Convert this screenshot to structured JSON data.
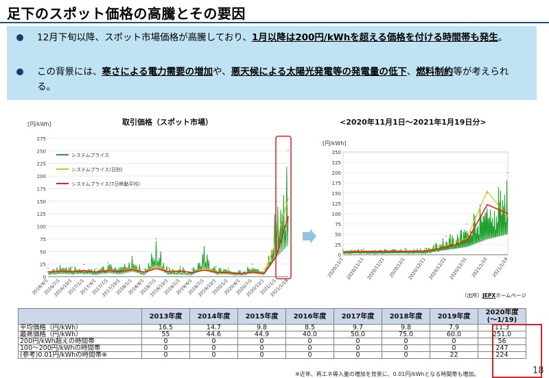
{
  "title": "足下のスポット価格の高騰とその要因",
  "bullets": [
    {
      "pre": "12月下旬以降、スポット市場価格が高騰しており、",
      "emph": "1月以降は200円/kWhを超える価格を付ける時間帯も発生",
      "post": "。"
    },
    {
      "pre": "この背景には、",
      "emph1": "寒さによる電力需要の増加",
      "mid1": "や、",
      "emph2": "悪天候による太陽光発電等の発電量の低下",
      "mid2": "、",
      "emph3": "燃料制約",
      "post": "等が考えられる。"
    }
  ],
  "colors": {
    "system_price": "#22a02f",
    "daily_avg": "#e6c000",
    "ma7": "#e8211d",
    "highlight": "#e02020",
    "table_header": "#ccd7ea"
  },
  "chart_data": [
    {
      "type": "line",
      "title": "取引価格（スポット市場）",
      "ylabel": "[円/kWh]",
      "ylim": [
        0,
        275
      ],
      "yticks": [
        0,
        25,
        50,
        75,
        100,
        125,
        150,
        175,
        200,
        225,
        250,
        275
      ],
      "grid": true,
      "legend_position": "top-left",
      "categories": [
        "2016/4/1",
        "2016/7/1",
        "2016/10/1",
        "2017/1/1",
        "2017/4/1",
        "2017/7/1",
        "2017/10/1",
        "2018/1/1",
        "2018/4/1",
        "2018/7/1",
        "2018/10/1",
        "2019/1/1",
        "2019/4/1",
        "2019/7/1",
        "2019/10/1",
        "2020/1/1",
        "2020/4/1",
        "2020/7/1",
        "2020/10/1",
        "2021/1/1",
        "2021/1/19"
      ],
      "series": [
        {
          "name": "システムプライス",
          "values": [
            17,
            22,
            19,
            24,
            16,
            28,
            18,
            40,
            15,
            75,
            18,
            20,
            14,
            60,
            20,
            18,
            12,
            25,
            15,
            150,
            251
          ]
        },
        {
          "name": "システムプライス(日別)",
          "values": [
            10,
            12,
            11,
            13,
            9,
            14,
            10,
            17,
            9,
            22,
            11,
            12,
            8,
            16,
            10,
            9,
            6,
            10,
            8,
            70,
            155
          ]
        },
        {
          "name": "システムプライス(7日移動平均)",
          "values": [
            9,
            11,
            10,
            12,
            9,
            12,
            10,
            14,
            9,
            16,
            10,
            11,
            8,
            13,
            9,
            8,
            6,
            9,
            7,
            40,
            120
          ]
        }
      ]
    },
    {
      "type": "line",
      "title": "<2020年11月1日～2021年1月19日分>",
      "ylabel": "[円/kWh]",
      "ylim": [
        0,
        250
      ],
      "yticks": [
        0,
        25,
        50,
        75,
        100,
        125,
        150,
        175,
        200,
        225,
        250
      ],
      "grid": true,
      "categories": [
        "2020/11/1",
        "2020/11/11",
        "2020/11/21",
        "2020/12/1",
        "2020/12/11",
        "2020/12/21",
        "2020/12/31",
        "2021/1/10",
        "2021/1/19"
      ],
      "series": [
        {
          "name": "システムプライス",
          "values": [
            12,
            14,
            13,
            15,
            16,
            45,
            75,
            150,
            200
          ]
        },
        {
          "name": "システムプライス(日別)",
          "values": [
            8,
            9,
            8,
            9,
            10,
            24,
            40,
            155,
            90
          ]
        },
        {
          "name": "システムプライス(7日移動平均)",
          "values": [
            7,
            8,
            8,
            8,
            9,
            18,
            32,
            122,
            100
          ]
        }
      ]
    }
  ],
  "source": {
    "prefix": "（出所）",
    "name": "JEPX",
    "suffix": "ホームページ"
  },
  "table": {
    "headers": [
      "2013年度",
      "2014年度",
      "2015年度",
      "2016年度",
      "2017年度",
      "2018年度",
      "2019年度",
      "2020年度\n(～1/19)"
    ],
    "rows": [
      {
        "label": "平均価格（円/kWh）",
        "values": [
          "16.5",
          "14.7",
          "9.8",
          "8.5",
          "9.7",
          "9.8",
          "7.9",
          "11.3"
        ]
      },
      {
        "label": "最高価格（円/kWh）",
        "values": [
          "55",
          "44.6",
          "44.9",
          "40.0",
          "50.0",
          "75.0",
          "60.0",
          "251.0"
        ]
      },
      {
        "label": "200円/kWh超えの時間帯",
        "values": [
          "0",
          "0",
          "0",
          "0",
          "0",
          "0",
          "0",
          "56"
        ]
      },
      {
        "label": "100～200円/kWhの時間帯",
        "values": [
          "0",
          "0",
          "0",
          "0",
          "0",
          "0",
          "0",
          "247"
        ]
      },
      {
        "label": "(参考)0.01円/kWhの時間帯※",
        "values": [
          "0",
          "0",
          "0",
          "0",
          "0",
          "0",
          "22",
          "224"
        ]
      }
    ]
  },
  "footnote": "※近年、再エネ導入量の増加を背景に、0.01円/kWhとなる時間帯も増加。",
  "page_number": "18"
}
